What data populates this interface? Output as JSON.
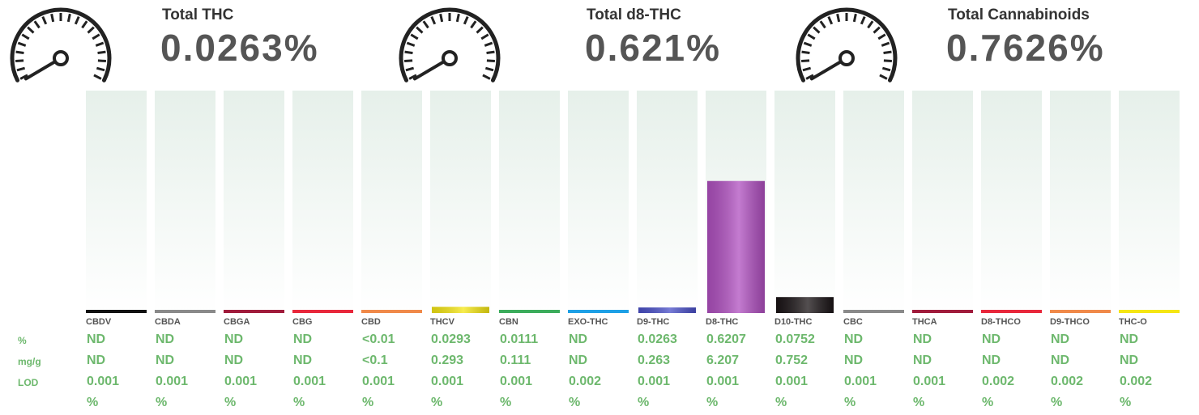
{
  "totals": [
    {
      "label": "Total THC",
      "value": "0.0263%"
    },
    {
      "label": "Total d8-THC",
      "value": "0.621%"
    },
    {
      "label": "Total Cannabinoids",
      "value": "0.7626%"
    }
  ],
  "row_labels": [
    "%",
    "mg/g",
    "LOD"
  ],
  "analytes": [
    {
      "name": "CBDV",
      "color": "#111111",
      "percent": "ND",
      "mg_g": "ND",
      "lod": 0.001,
      "unit": "%"
    },
    {
      "name": "CBDA",
      "color": "#8a8a8a",
      "percent": "ND",
      "mg_g": "ND",
      "lod": 0.001,
      "unit": "%"
    },
    {
      "name": "CBGA",
      "color": "#a01c3c",
      "percent": "ND",
      "mg_g": "ND",
      "lod": 0.001,
      "unit": "%"
    },
    {
      "name": "CBG",
      "color": "#e8283c",
      "percent": "ND",
      "mg_g": "ND",
      "lod": 0.001,
      "unit": "%"
    },
    {
      "name": "CBD",
      "color": "#f08a4a",
      "percent": "<0.01",
      "mg_g": "<0.1",
      "lod": 0.001,
      "unit": "%"
    },
    {
      "name": "THCV",
      "color": "#f5e614",
      "percent": 0.0293,
      "mg_g": 0.293,
      "lod": 0.001,
      "unit": "%"
    },
    {
      "name": "CBN",
      "color": "#3cac5c",
      "percent": 0.0111,
      "mg_g": 0.111,
      "lod": 0.001,
      "unit": "%"
    },
    {
      "name": "EXO-THC",
      "color": "#1ea0e6",
      "percent": "ND",
      "mg_g": "ND",
      "lod": 0.002,
      "unit": "%"
    },
    {
      "name": "D9-THC",
      "color": "#4a50c8",
      "percent": 0.0263,
      "mg_g": 0.263,
      "lod": 0.001,
      "unit": "%"
    },
    {
      "name": "D8-THC",
      "color": "#b050c0",
      "percent": 0.6207,
      "mg_g": 6.207,
      "lod": 0.001,
      "unit": "%"
    },
    {
      "name": "D10-THC",
      "color": "#1a1416",
      "percent": 0.0752,
      "mg_g": 0.752,
      "lod": 0.001,
      "unit": "%"
    },
    {
      "name": "CBC",
      "color": "#8a8a8a",
      "percent": "ND",
      "mg_g": "ND",
      "lod": 0.001,
      "unit": "%"
    },
    {
      "name": "THCA",
      "color": "#a01c3c",
      "percent": "ND",
      "mg_g": "ND",
      "lod": 0.001,
      "unit": "%"
    },
    {
      "name": "D8-THCO",
      "color": "#e8283c",
      "percent": "ND",
      "mg_g": "ND",
      "lod": 0.002,
      "unit": "%"
    },
    {
      "name": "D9-THCO",
      "color": "#f08a4a",
      "percent": "ND",
      "mg_g": "ND",
      "lod": 0.002,
      "unit": "%"
    },
    {
      "name": "THC-O",
      "color": "#f5e614",
      "percent": "ND",
      "mg_g": "ND",
      "lod": 0.002,
      "unit": "%"
    }
  ]
}
